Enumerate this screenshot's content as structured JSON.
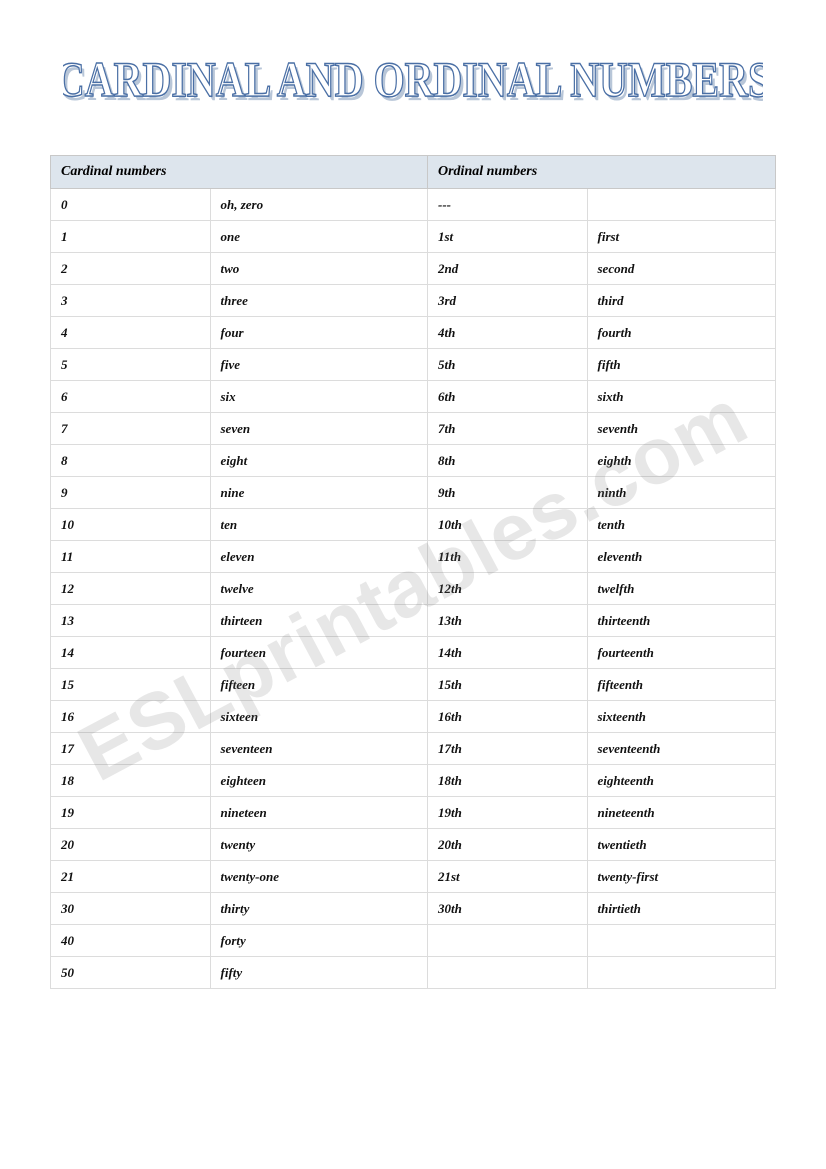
{
  "title_text": "CARDINAL AND ORDINAL NUMBERS",
  "title_font_family": "Times New Roman",
  "title_fill": "#ffffff",
  "title_stroke": "#4a6fa5",
  "title_shadow": "#b8c6d8",
  "header": {
    "cardinal": "Cardinal numbers",
    "ordinal": "Ordinal numbers",
    "bg_color": "#dde5ed"
  },
  "watermark": "ESLprintables.com",
  "columns": [
    "num",
    "word",
    "ord",
    "ordword"
  ],
  "rows": [
    {
      "num": "0",
      "word": "oh, zero",
      "ord": "---",
      "ordword": ""
    },
    {
      "num": "1",
      "word": "one",
      "ord": "1st",
      "ordword": "first"
    },
    {
      "num": "2",
      "word": "two",
      "ord": "2nd",
      "ordword": "second"
    },
    {
      "num": "3",
      "word": "three",
      "ord": "3rd",
      "ordword": "third"
    },
    {
      "num": "4",
      "word": "four",
      "ord": "4th",
      "ordword": "fourth"
    },
    {
      "num": "5",
      "word": "five",
      "ord": "5th",
      "ordword": "fifth"
    },
    {
      "num": "6",
      "word": "six",
      "ord": "6th",
      "ordword": "sixth"
    },
    {
      "num": "7",
      "word": "seven",
      "ord": "7th",
      "ordword": "seventh"
    },
    {
      "num": "8",
      "word": "eight",
      "ord": "8th",
      "ordword": "eighth"
    },
    {
      "num": "9",
      "word": "nine",
      "ord": "9th",
      "ordword": "ninth"
    },
    {
      "num": "10",
      "word": "ten",
      "ord": "10th",
      "ordword": "tenth"
    },
    {
      "num": "11",
      "word": "eleven",
      "ord": "11th",
      "ordword": "eleventh"
    },
    {
      "num": "12",
      "word": "twelve",
      "ord": "12th",
      "ordword": "twelfth"
    },
    {
      "num": "13",
      "word": "thirteen",
      "ord": "13th",
      "ordword": "thirteenth"
    },
    {
      "num": "14",
      "word": "fourteen",
      "ord": "14th",
      "ordword": "fourteenth"
    },
    {
      "num": "15",
      "word": "fifteen",
      "ord": "15th",
      "ordword": "fifteenth"
    },
    {
      "num": "16",
      "word": "sixteen",
      "ord": "16th",
      "ordword": "sixteenth"
    },
    {
      "num": "17",
      "word": "seventeen",
      "ord": "17th",
      "ordword": "seventeenth"
    },
    {
      "num": "18",
      "word": "eighteen",
      "ord": "18th",
      "ordword": "eighteenth"
    },
    {
      "num": "19",
      "word": "nineteen",
      "ord": "19th",
      "ordword": "nineteenth"
    },
    {
      "num": "20",
      "word": "twenty",
      "ord": "20th",
      "ordword": "twentieth"
    },
    {
      "num": "21",
      "word": "twenty-one",
      "ord": "21st",
      "ordword": "twenty-first"
    },
    {
      "num": "30",
      "word": "thirty",
      "ord": "30th",
      "ordword": "thirtieth"
    },
    {
      "num": "40",
      "word": "forty",
      "ord": "",
      "ordword": ""
    },
    {
      "num": "50",
      "word": "fifty",
      "ord": "",
      "ordword": ""
    }
  ]
}
